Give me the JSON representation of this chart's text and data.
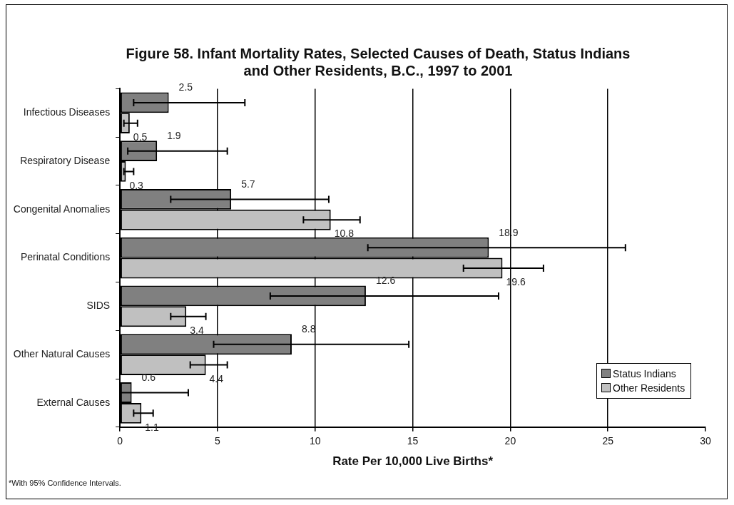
{
  "chart_data": {
    "type": "bar",
    "orientation": "horizontal",
    "title": "Figure 58.  Infant Mortality Rates, Selected Causes of Death, Status Indians and Other Residents, B.C., 1997 to 2001",
    "xlabel": "Rate Per 10,000 Live Births*",
    "categories": [
      "Infectious Diseases",
      "Respiratory Disease",
      "Congenital Anomalies",
      "Perinatal Conditions",
      "SIDS",
      "Other Natural Causes",
      "External Causes"
    ],
    "series": [
      {
        "name": "Status Indians",
        "color": "#808080",
        "values": [
          2.5,
          1.9,
          5.7,
          18.9,
          12.6,
          8.8,
          0.6
        ],
        "errors": [
          [
            0.7,
            6.4
          ],
          [
            0.4,
            5.5
          ],
          [
            2.6,
            10.7
          ],
          [
            12.7,
            25.9
          ],
          [
            7.7,
            19.4
          ],
          [
            4.8,
            14.8
          ],
          [
            0,
            3.5
          ]
        ]
      },
      {
        "name": "Other Residents",
        "color": "#c0c0c0",
        "values": [
          0.5,
          0.3,
          10.8,
          19.6,
          3.4,
          4.4,
          1.1
        ],
        "errors": [
          [
            0.2,
            0.9
          ],
          [
            0.2,
            0.7
          ],
          [
            9.4,
            12.3
          ],
          [
            17.6,
            21.7
          ],
          [
            2.6,
            4.4
          ],
          [
            3.6,
            5.5
          ],
          [
            0.7,
            1.7
          ]
        ]
      }
    ],
    "xlim": [
      0,
      30
    ],
    "xticks": [
      0,
      5,
      10,
      15,
      20,
      25,
      30
    ],
    "grid": "x",
    "legend": "bottom right",
    "data_labels": true,
    "annotations": [
      "*With 95% Confidence Intervals."
    ]
  }
}
